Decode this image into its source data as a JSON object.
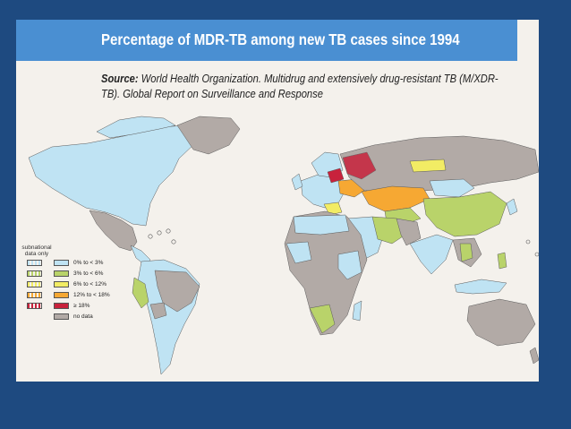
{
  "header": {
    "title": "Percentage of MDR-TB among new TB cases since 1994",
    "source_label": "Source:",
    "source_text": "World Health Organization. Multidrug and extensively drug-resistant TB (M/XDR-TB). Global Report on Surveillance and Response"
  },
  "legend": {
    "subnational_label": "subnational data only",
    "items": [
      {
        "label": "0% to < 3%",
        "color": "#bfe3f3"
      },
      {
        "label": "3% to < 6%",
        "color": "#b9d36a"
      },
      {
        "label": "6% to < 12%",
        "color": "#f2ec64"
      },
      {
        "label": "12% to < 18%",
        "color": "#f6a833"
      },
      {
        "label": "≥ 18%",
        "color": "#c8223c"
      },
      {
        "label": "no data",
        "color": "#b2aaa6"
      }
    ]
  },
  "colors": {
    "background": "#1e4a80",
    "title_bar": "#4a8fd2",
    "map_background": "#f4f1ec"
  }
}
